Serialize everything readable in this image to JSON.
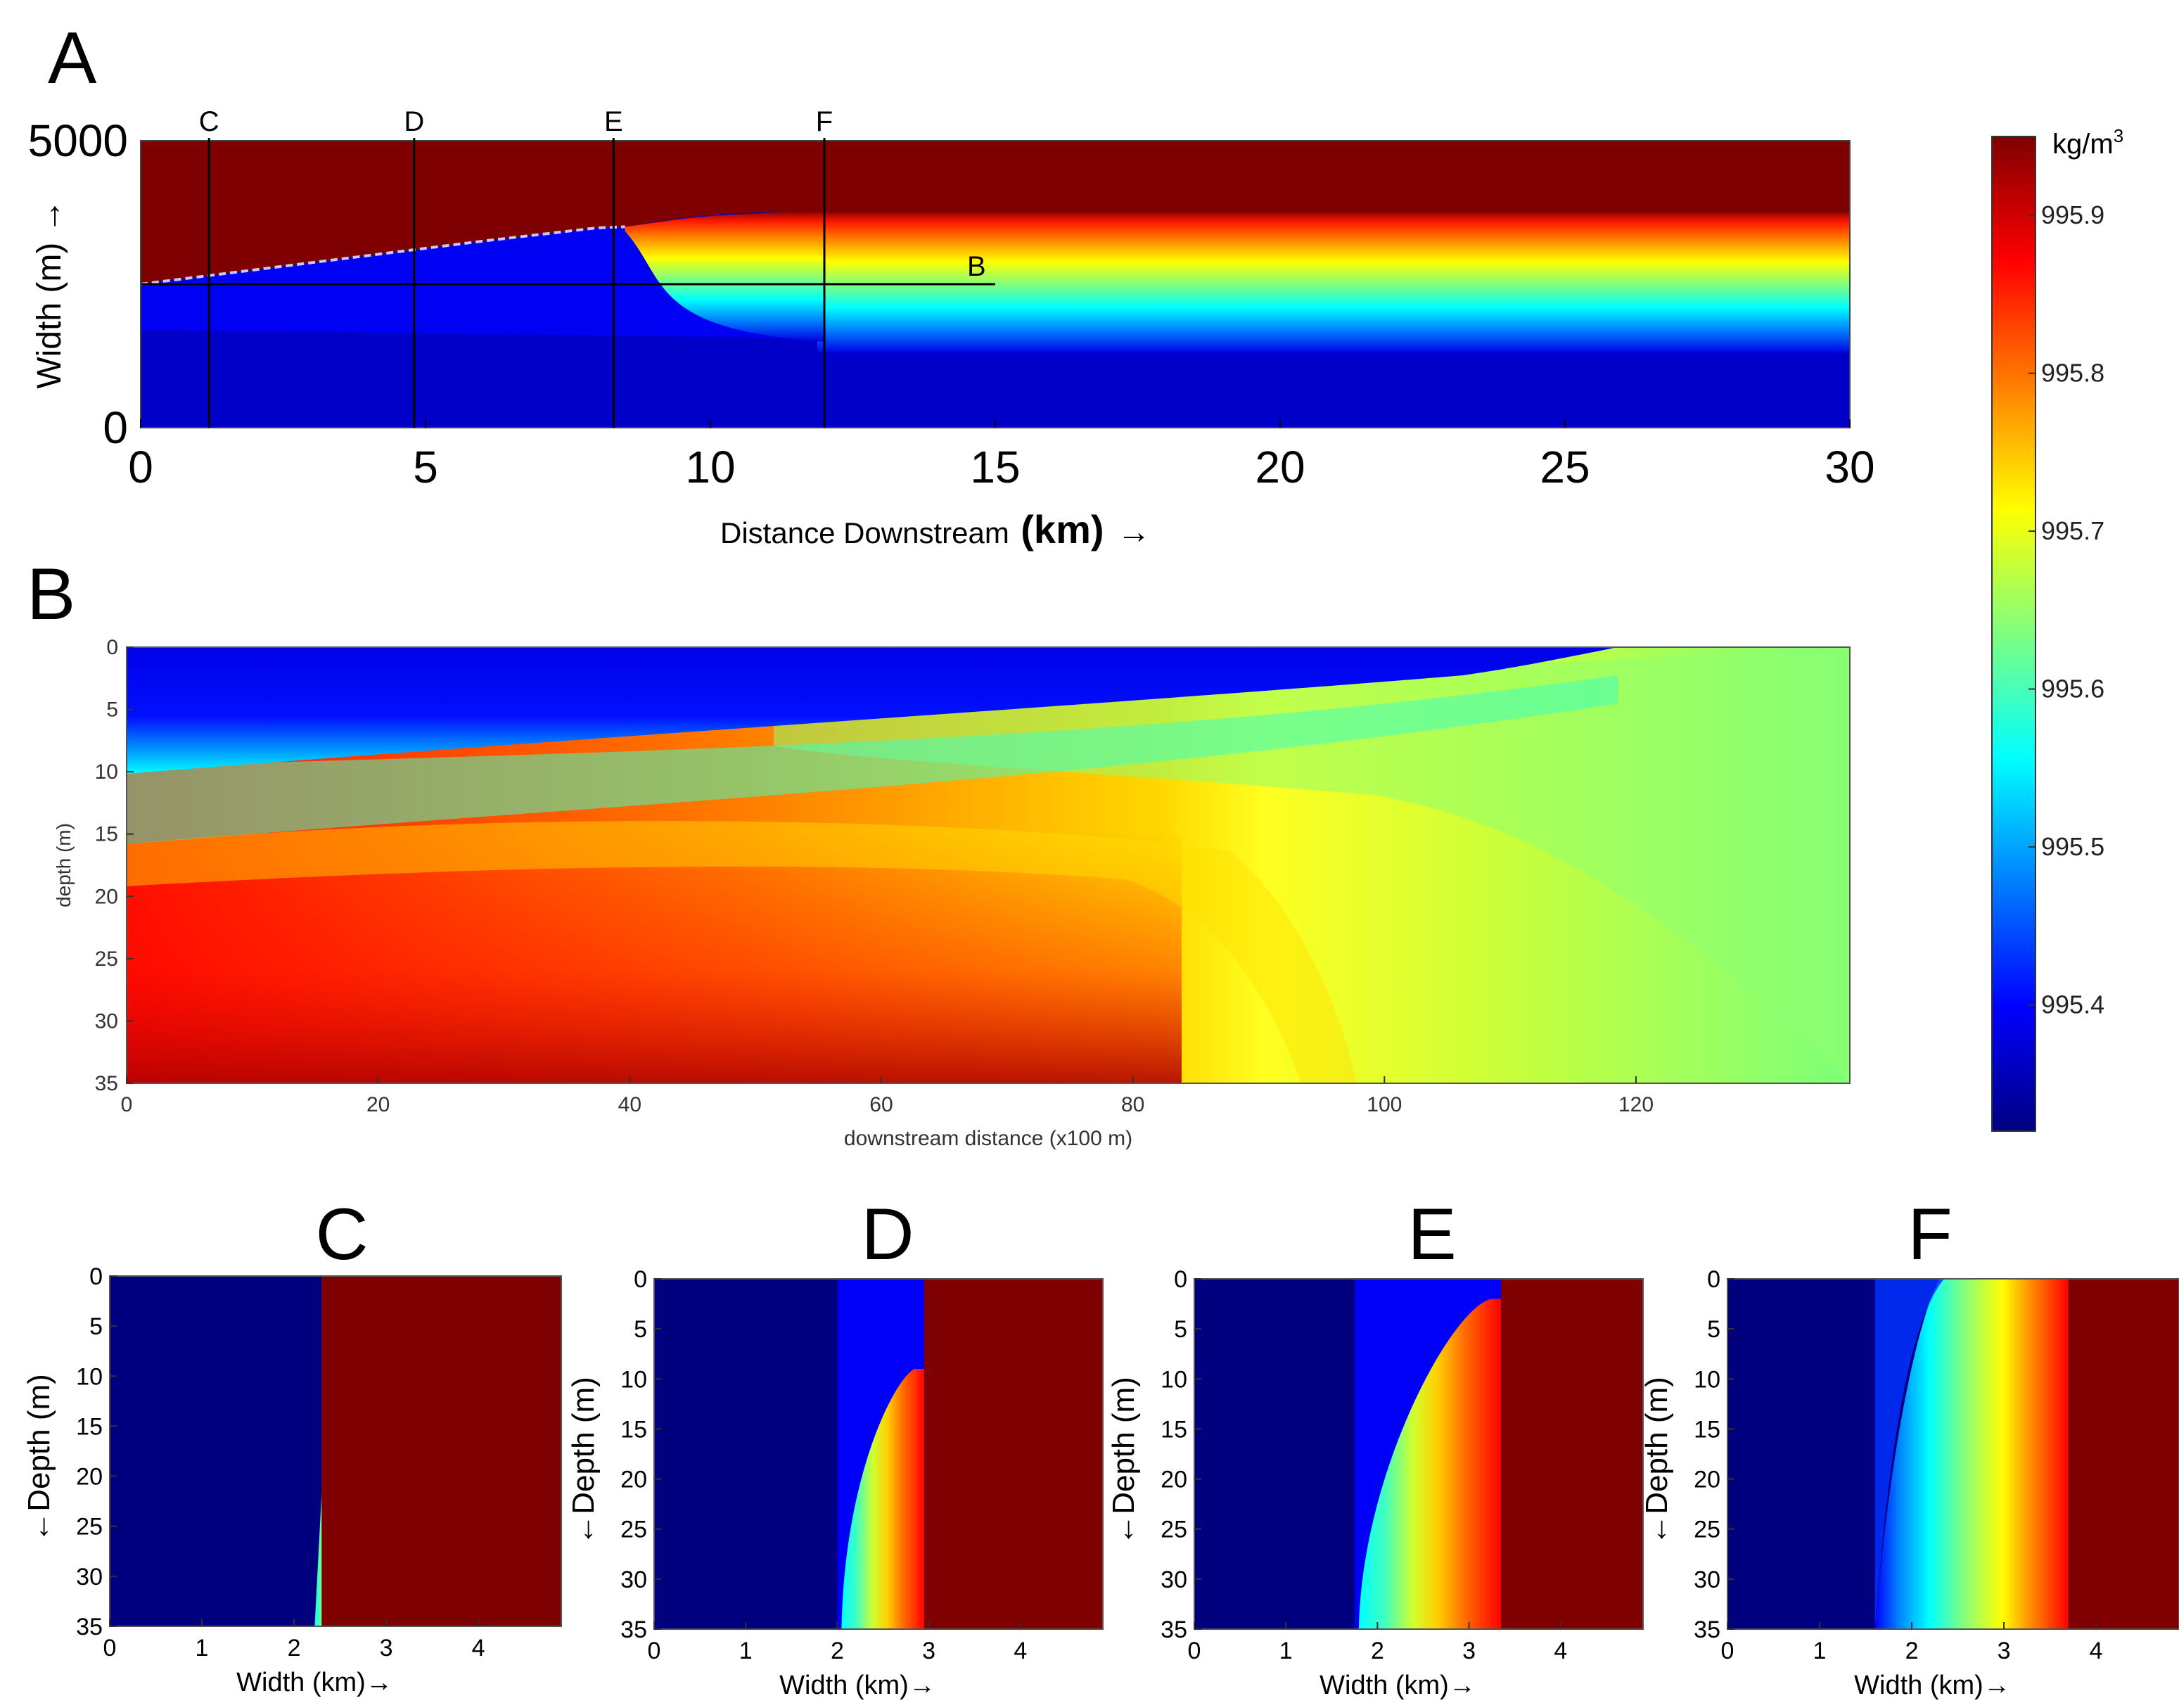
{
  "colors": {
    "jet": [
      "#00007f",
      "#0000ff",
      "#007fff",
      "#00ffff",
      "#7fff7f",
      "#ffff00",
      "#ff7f00",
      "#ff0000",
      "#7f0000"
    ],
    "river_fill": "#7f0000",
    "plume_core": "#0000f0",
    "background": "#ffffff",
    "axis": "#000000"
  },
  "chart_data": [
    {
      "id": "A",
      "panel_letter": "A",
      "type": "heatmap",
      "title": "",
      "xlabel_prefix": "Distance Downstream",
      "xlabel_unit": "(km)",
      "xlabel_arrow": "→",
      "ylabel": "Width (m) →",
      "xlim": [
        0,
        30
      ],
      "ylim": [
        0,
        5000
      ],
      "xticks": [
        "0",
        "5",
        "10",
        "15",
        "20",
        "25",
        "30"
      ],
      "xtick_values": [
        0,
        5,
        10,
        15,
        20,
        25,
        30
      ],
      "yticks": [
        "0",
        "5000"
      ],
      "ytick_values": [
        0,
        5000
      ],
      "variable": "density (kg/m3)",
      "plume_boundary_km": [
        0,
        2,
        4,
        6,
        8,
        8.5
      ],
      "plume_boundary_width_m": [
        2500,
        2750,
        3000,
        3250,
        3480,
        3500
      ],
      "section_lines": [
        {
          "label": "C",
          "distance_km": 1.2
        },
        {
          "label": "D",
          "distance_km": 4.8
        },
        {
          "label": "E",
          "distance_km": 8.3
        },
        {
          "label": "F",
          "distance_km": 12.0
        }
      ],
      "transect_line": {
        "label": "B",
        "width_m": 2500,
        "from_km": 0,
        "to_km": 15
      }
    },
    {
      "id": "B",
      "panel_letter": "B",
      "type": "heatmap",
      "xlabel": "downstream distance (x100 m)",
      "ylabel": "depth (m)",
      "xlim": [
        0,
        137
      ],
      "ylim": [
        35,
        0
      ],
      "xticks": [
        "0",
        "20",
        "40",
        "60",
        "80",
        "100",
        "120"
      ],
      "xtick_values": [
        0,
        20,
        40,
        60,
        80,
        100,
        120
      ],
      "yticks": [
        "0",
        "5",
        "10",
        "15",
        "20",
        "25",
        "30",
        "35"
      ],
      "ytick_values": [
        0,
        5,
        10,
        15,
        20,
        25,
        30,
        35
      ],
      "variable": "density (kg/m3)"
    },
    {
      "id": "C",
      "panel_letter": "C",
      "type": "heatmap",
      "xlabel": "Width (km)→",
      "ylabel": "←Depth (m)",
      "xlim": [
        0,
        4.9
      ],
      "ylim": [
        35,
        0
      ],
      "xticks": [
        "0",
        "1",
        "2",
        "3",
        "4"
      ],
      "xtick_values": [
        0,
        1,
        2,
        3,
        4
      ],
      "yticks": [
        "0",
        "5",
        "10",
        "15",
        "20",
        "25",
        "30",
        "35"
      ],
      "ytick_values": [
        0,
        5,
        10,
        15,
        20,
        25,
        30,
        35
      ],
      "front_top_km": 2.5,
      "front_bottom_km": 2.3,
      "blue_edge_km": 2.4
    },
    {
      "id": "D",
      "panel_letter": "D",
      "type": "heatmap",
      "xlabel": "Width (km)→",
      "ylabel": "←Depth (m)",
      "xlim": [
        0,
        4.9
      ],
      "ylim": [
        35,
        0
      ],
      "xticks": [
        "0",
        "1",
        "2",
        "3",
        "4"
      ],
      "xtick_values": [
        0,
        1,
        2,
        3,
        4
      ],
      "yticks": [
        "0",
        "5",
        "10",
        "15",
        "20",
        "25",
        "30",
        "35"
      ],
      "ytick_values": [
        0,
        5,
        10,
        15,
        20,
        25,
        30,
        35
      ],
      "front_top_km": 3.0,
      "front_bottom_km": 2.95,
      "blue_edge_km": 2.0
    },
    {
      "id": "E",
      "panel_letter": "E",
      "type": "heatmap",
      "xlabel": "Width (km)→",
      "ylabel": "←Depth (m)",
      "xlim": [
        0,
        4.9
      ],
      "ylim": [
        35,
        0
      ],
      "xticks": [
        "0",
        "1",
        "2",
        "3",
        "4"
      ],
      "xtick_values": [
        0,
        1,
        2,
        3,
        4
      ],
      "yticks": [
        "0",
        "5",
        "10",
        "15",
        "20",
        "25",
        "30",
        "35"
      ],
      "ytick_values": [
        0,
        5,
        10,
        15,
        20,
        25,
        30,
        35
      ],
      "front_top_km": 3.4,
      "front_bottom_km": 3.35,
      "blue_edge_km": 1.75
    },
    {
      "id": "F",
      "panel_letter": "F",
      "type": "heatmap",
      "xlabel": "Width (km)→",
      "ylabel": "←Depth (m)",
      "xlim": [
        0,
        4.9
      ],
      "ylim": [
        35,
        0
      ],
      "xticks": [
        "0",
        "1",
        "2",
        "3",
        "4"
      ],
      "xtick_values": [
        0,
        1,
        2,
        3,
        4
      ],
      "yticks": [
        "0",
        "5",
        "10",
        "15",
        "20",
        "25",
        "30",
        "35"
      ],
      "ytick_values": [
        0,
        5,
        10,
        15,
        20,
        25,
        30,
        35
      ],
      "front_top_km": 3.7,
      "front_bottom_km": 3.7,
      "blue_edge_km": 1.6
    },
    {
      "id": "colorbar",
      "type": "colorbar",
      "unit_label": "kg/m",
      "unit_superscript": "3",
      "vmin": 995.32,
      "vmax": 995.95,
      "ticks": [
        "995.4",
        "995.5",
        "995.6",
        "995.7",
        "995.8",
        "995.9"
      ],
      "tick_values": [
        995.4,
        995.5,
        995.6,
        995.7,
        995.8,
        995.9
      ]
    }
  ]
}
